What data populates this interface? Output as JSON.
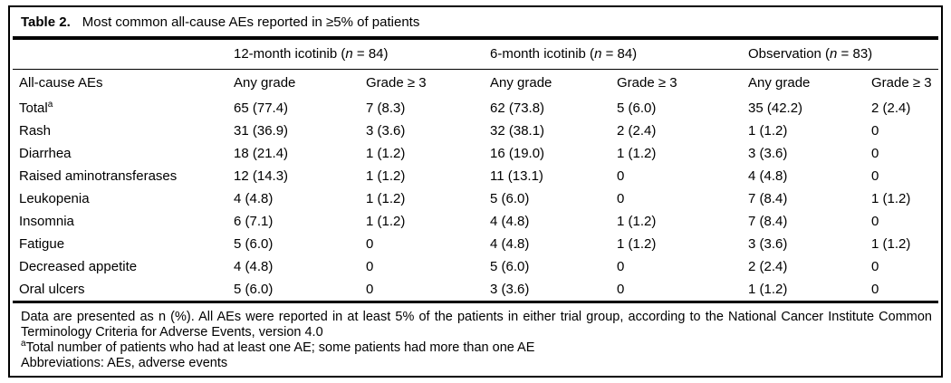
{
  "title": {
    "label": "Table 2.",
    "text": "Most common all-cause AEs reported in ≥5% of patients"
  },
  "table": {
    "row_header": "All-cause AEs",
    "groups": [
      {
        "name": "12-month icotinib",
        "n_symbol": "n",
        "n_value": "84"
      },
      {
        "name": "6-month icotinib",
        "n_symbol": "n",
        "n_value": "84"
      },
      {
        "name": "Observation",
        "n_symbol": "n",
        "n_value": "83"
      }
    ],
    "subheaders": [
      "Any grade",
      "Grade ≥ 3"
    ],
    "rows": [
      {
        "label": "Total",
        "sup": "a",
        "values": [
          "65 (77.4)",
          "7 (8.3)",
          "62 (73.8)",
          "5 (6.0)",
          "35 (42.2)",
          "2 (2.4)"
        ]
      },
      {
        "label": "Rash",
        "sup": "",
        "values": [
          "31 (36.9)",
          "3 (3.6)",
          "32 (38.1)",
          "2 (2.4)",
          "1 (1.2)",
          "0"
        ]
      },
      {
        "label": "Diarrhea",
        "sup": "",
        "values": [
          "18 (21.4)",
          "1 (1.2)",
          "16 (19.0)",
          "1 (1.2)",
          "3 (3.6)",
          "0"
        ]
      },
      {
        "label": "Raised aminotransferases",
        "sup": "",
        "values": [
          "12 (14.3)",
          "1 (1.2)",
          "11 (13.1)",
          "0",
          "4 (4.8)",
          "0"
        ]
      },
      {
        "label": "Leukopenia",
        "sup": "",
        "values": [
          "4 (4.8)",
          "1 (1.2)",
          "5 (6.0)",
          "0",
          "7 (8.4)",
          "1 (1.2)"
        ]
      },
      {
        "label": "Insomnia",
        "sup": "",
        "values": [
          "6 (7.1)",
          "1 (1.2)",
          "4 (4.8)",
          "1 (1.2)",
          "7 (8.4)",
          "0"
        ]
      },
      {
        "label": "Fatigue",
        "sup": "",
        "values": [
          "5 (6.0)",
          "0",
          "4 (4.8)",
          "1 (1.2)",
          "3 (3.6)",
          "1 (1.2)"
        ]
      },
      {
        "label": "Decreased appetite",
        "sup": "",
        "values": [
          "4 (4.8)",
          "0",
          "5 (6.0)",
          "0",
          "2 (2.4)",
          "0"
        ]
      },
      {
        "label": "Oral ulcers",
        "sup": "",
        "values": [
          "5 (6.0)",
          "0",
          "3 (3.6)",
          "0",
          "1 (1.2)",
          "0"
        ]
      }
    ]
  },
  "footnotes": [
    {
      "sup": "",
      "text": "Data are presented as n (%). All AEs were reported in at least 5% of the patients in either trial group, according to the National Cancer Institute Common Terminology Criteria for Adverse Events, version 4.0"
    },
    {
      "sup": "a",
      "text": "Total number of patients who had at least one AE; some patients had more than one AE"
    },
    {
      "sup": "",
      "text": "Abbreviations: AEs, adverse events"
    }
  ],
  "colors": {
    "text": "#000000",
    "background": "#ffffff",
    "rule": "#000000"
  }
}
